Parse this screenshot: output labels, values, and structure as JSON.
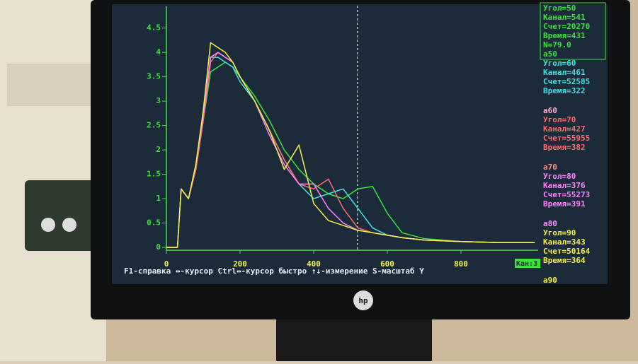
{
  "chart_data": {
    "type": "line",
    "x": [
      0,
      30,
      40,
      60,
      80,
      100,
      120,
      140,
      160,
      180,
      200,
      240,
      280,
      320,
      360,
      400,
      440,
      480,
      520,
      560,
      600,
      640,
      700,
      800,
      900,
      1000
    ],
    "series": [
      {
        "color": "#3ee03e",
        "values": [
          0,
          0,
          1.2,
          1.0,
          1.6,
          2.6,
          3.6,
          3.7,
          3.8,
          3.7,
          3.5,
          3.1,
          2.6,
          2.0,
          1.6,
          1.3,
          1.1,
          1.0,
          1.2,
          1.25,
          0.7,
          0.3,
          0.18,
          0.12,
          0.1,
          0.1
        ]
      },
      {
        "color": "#3fe3e0",
        "values": [
          0,
          0,
          1.2,
          1.0,
          1.6,
          2.6,
          3.9,
          3.9,
          3.8,
          3.7,
          3.4,
          3.0,
          2.4,
          1.8,
          1.3,
          1.0,
          1.1,
          1.2,
          0.8,
          0.4,
          0.25,
          0.2,
          0.15,
          0.12,
          0.1,
          0.1
        ]
      },
      {
        "color": "#ff6a6a",
        "values": [
          0,
          0,
          1.2,
          1.0,
          1.6,
          2.6,
          3.8,
          4.0,
          3.9,
          3.8,
          3.5,
          3.0,
          2.4,
          1.8,
          1.3,
          1.2,
          1.4,
          0.8,
          0.4,
          0.3,
          0.25,
          0.2,
          0.15,
          0.12,
          0.1,
          0.1
        ]
      },
      {
        "color": "#ff80ff",
        "values": [
          0,
          0,
          1.2,
          1.0,
          1.7,
          2.7,
          3.9,
          4.0,
          3.9,
          3.8,
          3.5,
          3.0,
          2.3,
          1.7,
          1.3,
          1.3,
          0.8,
          0.5,
          0.35,
          0.3,
          0.25,
          0.2,
          0.15,
          0.12,
          0.1,
          0.1
        ]
      },
      {
        "color": "#f2f04a",
        "values": [
          0,
          0,
          1.2,
          1.0,
          1.7,
          2.8,
          4.2,
          4.1,
          4.0,
          3.8,
          3.5,
          3.0,
          2.4,
          1.6,
          2.1,
          0.9,
          0.55,
          0.45,
          0.35,
          0.3,
          0.25,
          0.2,
          0.15,
          0.12,
          0.1,
          0.1
        ]
      }
    ],
    "xlim": [
      0,
      1000
    ],
    "xticks": [
      0,
      200,
      400,
      600,
      800
    ],
    "ylim": [
      0,
      4.8
    ],
    "yticks": [
      0,
      0.5,
      1,
      1.5,
      2,
      2.5,
      3,
      3.5,
      4,
      4.5
    ],
    "cursor_x": 519
  },
  "readouts": [
    {
      "color": "#3ee03e",
      "lines": [
        "Угол=50",
        "Канал=541",
        "Счет=20270",
        "Время=431",
        "N=79.0",
        "a50"
      ]
    },
    {
      "color": "#3fe3e0",
      "lines": [
        "Угол=60",
        "Канал=461",
        "Счет=52585",
        "Время=322"
      ]
    },
    {
      "color": "#ffb0c8",
      "lines": [
        "a60"
      ]
    },
    {
      "color": "#ff6a6a",
      "lines": [
        "Угол=70",
        "Канал=427",
        "Счет=55955",
        "Время=382"
      ]
    },
    {
      "color": "#ff8a8a",
      "lines": [
        "a70"
      ]
    },
    {
      "color": "#ff80ff",
      "lines": [
        "Угол=80",
        "Канал=376",
        "Счет=55273",
        "Время=391"
      ]
    },
    {
      "color": "#ff90ff",
      "lines": [
        "a80"
      ]
    },
    {
      "color": "#f2f04a",
      "lines": [
        "Угол=90",
        "Канал=343",
        "Счет=50164",
        "Время=364"
      ]
    },
    {
      "color": "#f2f04a",
      "lines": [
        "a90"
      ]
    }
  ],
  "status_bar": "F1-справка ↔-курсор Ctrl↔-курсор быстро ↑↓-измерение S-масштаб Y",
  "channel_box": "Кан:3"
}
